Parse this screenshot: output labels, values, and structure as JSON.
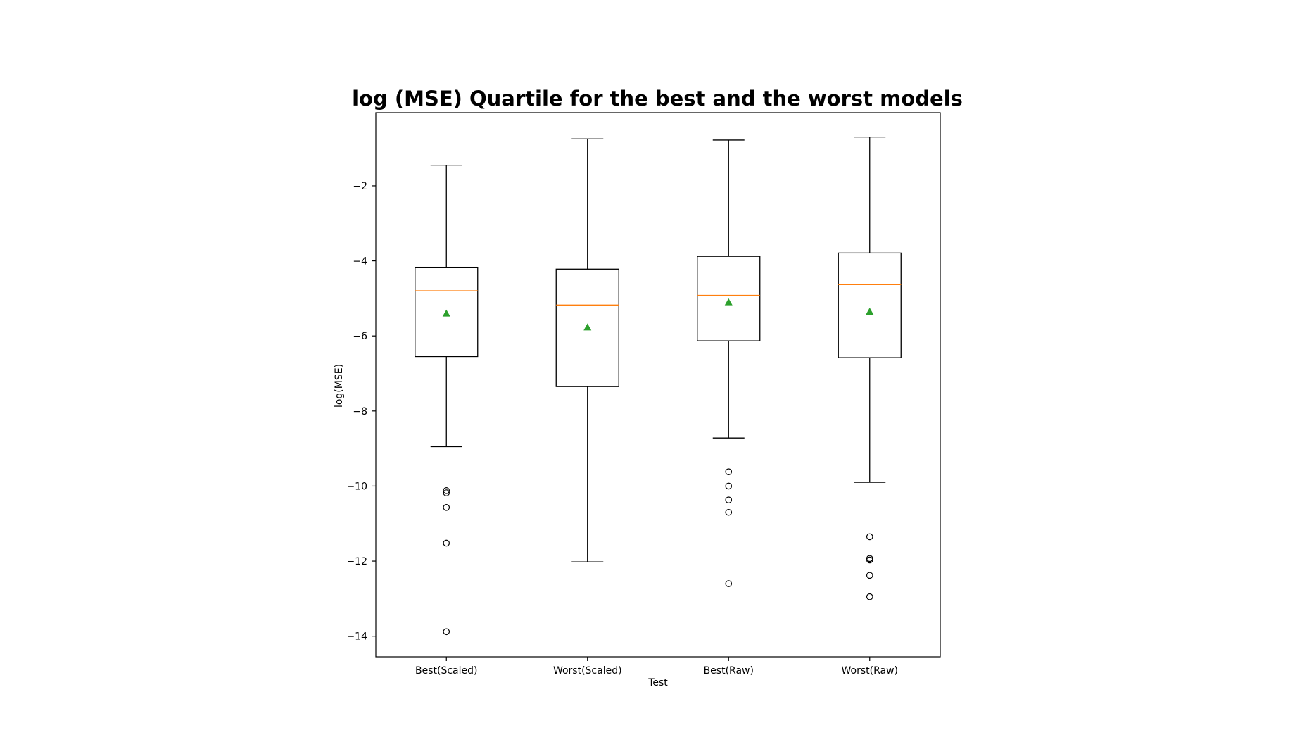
{
  "chart_data": {
    "type": "box",
    "title": "log (MSE) Quartile for the best and the worst models",
    "xlabel": "Test",
    "ylabel": "log(MSE)",
    "ylim": [
      -14.55,
      -0.05
    ],
    "yticks": [
      -2,
      -4,
      -6,
      -8,
      -10,
      -12,
      -14
    ],
    "ytick_labels": [
      "−2",
      "−4",
      "−6",
      "−8",
      "−10",
      "−12",
      "−14"
    ],
    "grid": false,
    "colors": {
      "box": "#000000",
      "median": "#ff7f0e",
      "mean": "#2ca02c",
      "flier": "#000000"
    },
    "categories": [
      "Best(Scaled)",
      "Worst(Scaled)",
      "Best(Raw)",
      "Worst(Raw)"
    ],
    "boxes": [
      {
        "whisker_low": -8.95,
        "q1": -6.55,
        "median": -4.8,
        "q3": -4.17,
        "whisker_high": -1.45,
        "mean": -5.4,
        "fliers": [
          -10.12,
          -10.18,
          -10.57,
          -11.52,
          -13.88
        ]
      },
      {
        "whisker_low": -12.02,
        "q1": -7.35,
        "median": -5.18,
        "q3": -4.22,
        "whisker_high": -0.75,
        "mean": -5.77,
        "fliers": []
      },
      {
        "whisker_low": -8.72,
        "q1": -6.13,
        "median": -4.92,
        "q3": -3.88,
        "whisker_high": -0.78,
        "mean": -5.1,
        "fliers": [
          -9.62,
          -10.0,
          -10.37,
          -10.7,
          -12.6
        ]
      },
      {
        "whisker_low": -9.9,
        "q1": -6.58,
        "median": -4.63,
        "q3": -3.79,
        "whisker_high": -0.7,
        "mean": -5.35,
        "fliers": [
          -11.35,
          -11.93,
          -11.97,
          -12.38,
          -12.95
        ]
      }
    ]
  }
}
